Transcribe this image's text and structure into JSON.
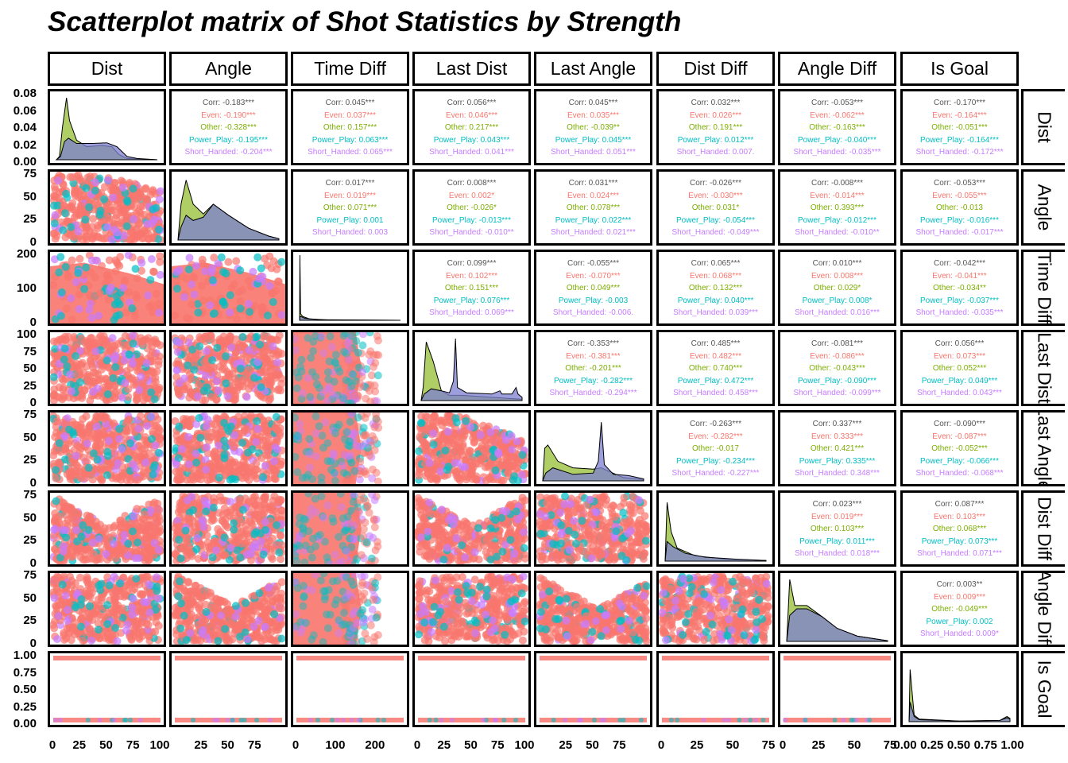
{
  "title": "Scatterplot matrix of Shot Statistics by Strength",
  "colors": {
    "Even": "#F8766D",
    "Other": "#7CAE00",
    "Power_Play": "#00BFC4",
    "Short_Handed": "#C77CFF",
    "overall": "#555555"
  },
  "chart_data": {
    "type": "scatter",
    "variables": [
      "Dist",
      "Angle",
      "Time Diff",
      "Last Dist",
      "Last Angle",
      "Dist Diff",
      "Angle Diff",
      "Is Goal"
    ],
    "groups": [
      "Even",
      "Other",
      "Power_Play",
      "Short_Handed"
    ],
    "axis_ranges": {
      "Dist": [
        0,
        100
      ],
      "Angle": [
        0,
        90
      ],
      "Time Diff": [
        0,
        270
      ],
      "Last Dist": [
        0,
        100
      ],
      "Last Angle": [
        0,
        90
      ],
      "Dist Diff": [
        0,
        95
      ],
      "Angle Diff": [
        0,
        95
      ],
      "Is Goal": [
        0,
        1
      ]
    },
    "x_ticks": [
      [
        "0",
        "25",
        "50",
        "75",
        "100"
      ],
      [
        "25",
        "50",
        "75"
      ],
      [
        "0",
        "100",
        "200"
      ],
      [
        "0",
        "25",
        "50",
        "75",
        "100"
      ],
      [
        "25",
        "50",
        "75"
      ],
      [
        "0",
        "25",
        "50",
        "75"
      ],
      [
        "0",
        "25",
        "50",
        "75"
      ],
      [
        "0.00",
        "0.25",
        "0.50",
        "0.75",
        "1.00"
      ]
    ],
    "y_ticks": [
      [
        "0.00",
        "0.02",
        "0.04",
        "0.06",
        "0.08"
      ],
      [
        "0",
        "25",
        "50",
        "75"
      ],
      [
        "0",
        "100",
        "200"
      ],
      [
        "0",
        "25",
        "50",
        "75",
        "100"
      ],
      [
        "0",
        "25",
        "50",
        "75"
      ],
      [
        "0",
        "25",
        "50",
        "75"
      ],
      [
        "0",
        "25",
        "50",
        "75"
      ],
      [
        "0.00",
        "0.25",
        "0.50",
        "0.75",
        "1.00"
      ]
    ],
    "correlations": [
      {
        "row": 0,
        "col": 1,
        "lines": [
          "Corr: -0.183***",
          "Even: -0.190***",
          "Other: -0.328***",
          "Power_Play: -0.195***",
          "Short_Handed: -0.204***"
        ]
      },
      {
        "row": 0,
        "col": 2,
        "lines": [
          "Corr: 0.045***",
          "Even: 0.037***",
          "Other: 0.157***",
          "Power_Play: 0.063***",
          "Short_Handed: 0.065***"
        ]
      },
      {
        "row": 0,
        "col": 3,
        "lines": [
          "Corr: 0.056***",
          "Even: 0.046***",
          "Other: 0.217***",
          "Power_Play: 0.043***",
          "Short_Handed: 0.041***"
        ]
      },
      {
        "row": 0,
        "col": 4,
        "lines": [
          "Corr: 0.045***",
          "Even: 0.035***",
          "Other: -0.039**",
          "Power_Play: 0.045***",
          "Short_Handed: 0.051***"
        ]
      },
      {
        "row": 0,
        "col": 5,
        "lines": [
          "Corr: 0.032***",
          "Even: 0.026***",
          "Other: 0.191***",
          "Power_Play: 0.012***",
          "Short_Handed: 0.007."
        ]
      },
      {
        "row": 0,
        "col": 6,
        "lines": [
          "Corr: -0.053***",
          "Even: -0.062***",
          "Other: -0.163***",
          "Power_Play: -0.040***",
          "Short_Handed: -0.035***"
        ]
      },
      {
        "row": 0,
        "col": 7,
        "lines": [
          "Corr: -0.170***",
          "Even: -0.164***",
          "Other: -0.051***",
          "Power_Play: -0.164***",
          "Short_Handed: -0.172***"
        ]
      },
      {
        "row": 1,
        "col": 2,
        "lines": [
          "Corr: 0.017***",
          "Even: 0.019***",
          "Other: 0.071***",
          "Power_Play: 0.001",
          "Short_Handed: 0.003"
        ]
      },
      {
        "row": 1,
        "col": 3,
        "lines": [
          "Corr: 0.008***",
          "Even: 0.002*",
          "Other: -0.026*",
          "Power_Play: -0.013***",
          "Short_Handed: -0.010**"
        ]
      },
      {
        "row": 1,
        "col": 4,
        "lines": [
          "Corr: 0.031***",
          "Even: 0.024***",
          "Other: 0.078***",
          "Power_Play: 0.022***",
          "Short_Handed: 0.021***"
        ]
      },
      {
        "row": 1,
        "col": 5,
        "lines": [
          "Corr: -0.026***",
          "Even: -0.030***",
          "Other: 0.031*",
          "Power_Play: -0.054***",
          "Short_Handed: -0.049***"
        ]
      },
      {
        "row": 1,
        "col": 6,
        "lines": [
          "Corr: -0.008***",
          "Even: -0.014***",
          "Other: 0.393***",
          "Power_Play: -0.012***",
          "Short_Handed: -0.010**"
        ]
      },
      {
        "row": 1,
        "col": 7,
        "lines": [
          "Corr: -0.053***",
          "Even: -0.055***",
          "Other: -0.013",
          "Power_Play: -0.016***",
          "Short_Handed: -0.017***"
        ]
      },
      {
        "row": 2,
        "col": 3,
        "lines": [
          "Corr: 0.099***",
          "Even: 0.102***",
          "Other: 0.151***",
          "Power_Play: 0.076***",
          "Short_Handed: 0.069***"
        ]
      },
      {
        "row": 2,
        "col": 4,
        "lines": [
          "Corr: -0.055***",
          "Even: -0.070***",
          "Other: 0.049***",
          "Power_Play: -0.003",
          "Short_Handed: -0.006."
        ]
      },
      {
        "row": 2,
        "col": 5,
        "lines": [
          "Corr: 0.065***",
          "Even: 0.068***",
          "Other: 0.132***",
          "Power_Play: 0.040***",
          "Short_Handed: 0.039***"
        ]
      },
      {
        "row": 2,
        "col": 6,
        "lines": [
          "Corr: 0.010***",
          "Even: 0.008***",
          "Other: 0.029*",
          "Power_Play: 0.008*",
          "Short_Handed: 0.016***"
        ]
      },
      {
        "row": 2,
        "col": 7,
        "lines": [
          "Corr: -0.042***",
          "Even: -0.041***",
          "Other: -0.034**",
          "Power_Play: -0.037***",
          "Short_Handed: -0.035***"
        ]
      },
      {
        "row": 3,
        "col": 4,
        "lines": [
          "Corr: -0.353***",
          "Even: -0.381***",
          "Other: -0.201***",
          "Power_Play: -0.282***",
          "Short_Handed: -0.294***"
        ]
      },
      {
        "row": 3,
        "col": 5,
        "lines": [
          "Corr: 0.485***",
          "Even: 0.482***",
          "Other: 0.740***",
          "Power_Play: 0.472***",
          "Short_Handed: 0.458***"
        ]
      },
      {
        "row": 3,
        "col": 6,
        "lines": [
          "Corr: -0.081***",
          "Even: -0.086***",
          "Other: -0.043***",
          "Power_Play: -0.090***",
          "Short_Handed: -0.099***"
        ]
      },
      {
        "row": 3,
        "col": 7,
        "lines": [
          "Corr: 0.056***",
          "Even: 0.073***",
          "Other: 0.052***",
          "Power_Play: 0.049***",
          "Short_Handed: 0.043***"
        ]
      },
      {
        "row": 4,
        "col": 5,
        "lines": [
          "Corr: -0.263***",
          "Even: -0.282***",
          "Other: -0.017",
          "Power_Play: -0.234***",
          "Short_Handed: -0.227***"
        ]
      },
      {
        "row": 4,
        "col": 6,
        "lines": [
          "Corr: 0.337***",
          "Even: 0.333***",
          "Other: 0.421***",
          "Power_Play: 0.335***",
          "Short_Handed: 0.348***"
        ]
      },
      {
        "row": 4,
        "col": 7,
        "lines": [
          "Corr: -0.090***",
          "Even: -0.087***",
          "Other: -0.052***",
          "Power_Play: -0.066***",
          "Short_Handed: -0.068***"
        ]
      },
      {
        "row": 5,
        "col": 6,
        "lines": [
          "Corr: 0.023***",
          "Even: 0.019***",
          "Other: 0.103***",
          "Power_Play: 0.011***",
          "Short_Handed: 0.018***"
        ]
      },
      {
        "row": 5,
        "col": 7,
        "lines": [
          "Corr: 0.087***",
          "Even: 0.103***",
          "Other: 0.068***",
          "Power_Play: 0.073***",
          "Short_Handed: 0.071***"
        ]
      },
      {
        "row": 6,
        "col": 7,
        "lines": [
          "Corr: 0.003**",
          "Even: 0.009***",
          "Other: -0.049***",
          "Power_Play: 0.002",
          "Short_Handed: 0.009*"
        ]
      }
    ]
  }
}
